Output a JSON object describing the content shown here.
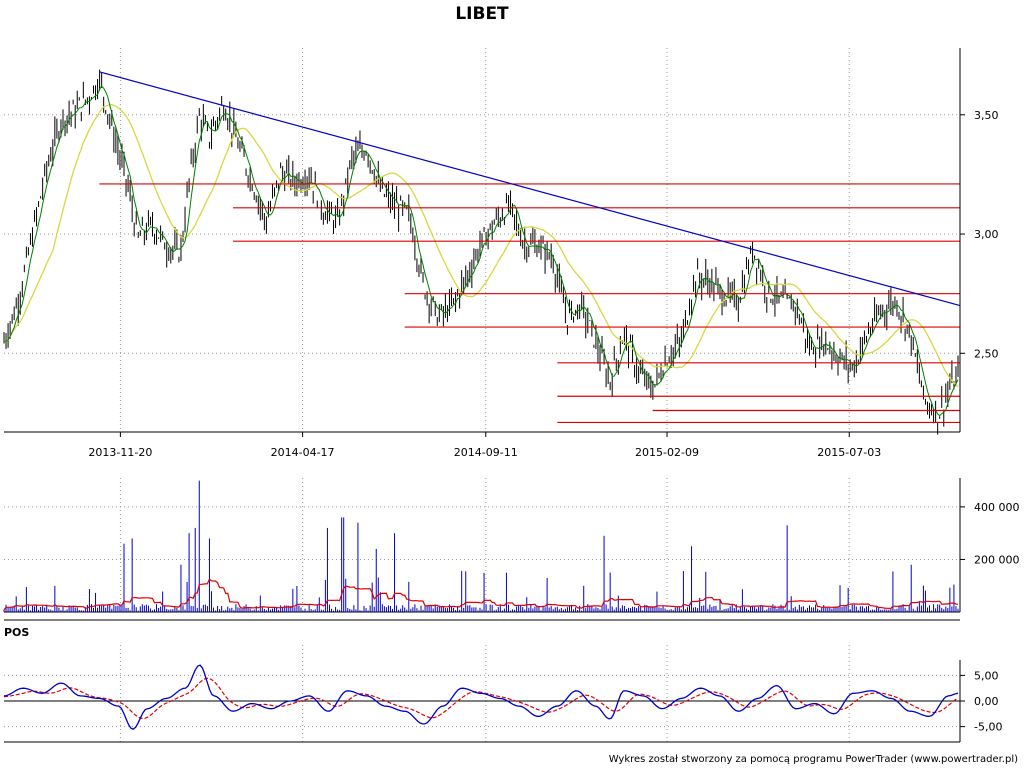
{
  "chart_data": [
    {
      "type": "candlestick",
      "title": "LIBET",
      "x_tick_labels": [
        "2013-11-20",
        "2014-04-17",
        "2014-09-11",
        "2015-02-09",
        "2015-07-03"
      ],
      "y_tick_labels": [
        "3,50",
        "3,00",
        "2,50"
      ],
      "y_ticks": [
        3.5,
        3.0,
        2.5
      ],
      "ylim": [
        2.17,
        3.78
      ],
      "grid": true,
      "colors": {
        "bars": "#000000",
        "sma_short": "#008000",
        "sma_long": "#d8d840",
        "trendline": "#0000cc",
        "levels": "#e00000"
      },
      "trendline": [
        {
          "x": 0.0,
          "y": 3.68
        },
        {
          "x": 1.0,
          "y": 2.7
        }
      ],
      "horizontal_levels": [
        {
          "from": 0.1,
          "y": 3.21
        },
        {
          "from": 0.24,
          "y": 3.11
        },
        {
          "from": 0.24,
          "y": 2.97
        },
        {
          "from": 0.42,
          "y": 2.75
        },
        {
          "from": 0.42,
          "y": 2.61
        },
        {
          "from": 0.58,
          "y": 2.46
        },
        {
          "from": 0.58,
          "y": 2.32
        },
        {
          "from": 0.68,
          "y": 2.26
        },
        {
          "from": 0.58,
          "y": 2.21
        }
      ],
      "price_series": [
        [
          0.0,
          2.55
        ],
        [
          0.015,
          2.72
        ],
        [
          0.03,
          3.0
        ],
        [
          0.045,
          3.28
        ],
        [
          0.06,
          3.48
        ],
        [
          0.075,
          3.52
        ],
        [
          0.09,
          3.58
        ],
        [
          0.1,
          3.65
        ],
        [
          0.115,
          3.42
        ],
        [
          0.13,
          3.2
        ],
        [
          0.14,
          2.98
        ],
        [
          0.155,
          3.04
        ],
        [
          0.17,
          2.95
        ],
        [
          0.185,
          2.92
        ],
        [
          0.195,
          3.25
        ],
        [
          0.205,
          3.5
        ],
        [
          0.215,
          3.4
        ],
        [
          0.23,
          3.55
        ],
        [
          0.245,
          3.38
        ],
        [
          0.26,
          3.22
        ],
        [
          0.275,
          3.05
        ],
        [
          0.29,
          3.26
        ],
        [
          0.305,
          3.22
        ],
        [
          0.32,
          3.25
        ],
        [
          0.335,
          3.1
        ],
        [
          0.35,
          3.05
        ],
        [
          0.365,
          3.32
        ],
        [
          0.38,
          3.36
        ],
        [
          0.395,
          3.18
        ],
        [
          0.41,
          3.12
        ],
        [
          0.425,
          3.08
        ],
        [
          0.44,
          2.78
        ],
        [
          0.455,
          2.65
        ],
        [
          0.47,
          2.7
        ],
        [
          0.485,
          2.82
        ],
        [
          0.5,
          2.96
        ],
        [
          0.515,
          3.05
        ],
        [
          0.53,
          3.12
        ],
        [
          0.545,
          2.96
        ],
        [
          0.56,
          2.95
        ],
        [
          0.575,
          2.9
        ],
        [
          0.59,
          2.65
        ],
        [
          0.605,
          2.7
        ],
        [
          0.62,
          2.55
        ],
        [
          0.635,
          2.38
        ],
        [
          0.65,
          2.58
        ],
        [
          0.665,
          2.42
        ],
        [
          0.68,
          2.35
        ],
        [
          0.695,
          2.48
        ],
        [
          0.71,
          2.55
        ],
        [
          0.725,
          2.82
        ],
        [
          0.74,
          2.8
        ],
        [
          0.755,
          2.74
        ],
        [
          0.77,
          2.72
        ],
        [
          0.785,
          2.94
        ],
        [
          0.8,
          2.76
        ],
        [
          0.815,
          2.72
        ],
        [
          0.83,
          2.7
        ],
        [
          0.845,
          2.52
        ],
        [
          0.86,
          2.55
        ],
        [
          0.875,
          2.48
        ],
        [
          0.89,
          2.44
        ],
        [
          0.905,
          2.58
        ],
        [
          0.92,
          2.68
        ],
        [
          0.935,
          2.72
        ],
        [
          0.95,
          2.58
        ],
        [
          0.965,
          2.3
        ],
        [
          0.98,
          2.24
        ],
        [
          0.99,
          2.35
        ],
        [
          1.0,
          2.4
        ]
      ]
    },
    {
      "type": "bar",
      "y_tick_labels": [
        "400 000",
        "200 000"
      ],
      "y_ticks": [
        400000,
        200000
      ],
      "ylim": [
        0,
        510000
      ],
      "colors": {
        "bars": "#0000cc",
        "average": "#e00000"
      },
      "spikes": [
        [
          0.125,
          260000
        ],
        [
          0.135,
          280000
        ],
        [
          0.185,
          180000
        ],
        [
          0.195,
          300000
        ],
        [
          0.2,
          320000
        ],
        [
          0.205,
          500000
        ],
        [
          0.215,
          280000
        ],
        [
          0.34,
          320000
        ],
        [
          0.355,
          360000
        ],
        [
          0.37,
          340000
        ],
        [
          0.39,
          240000
        ],
        [
          0.41,
          300000
        ],
        [
          0.63,
          290000
        ],
        [
          0.72,
          250000
        ],
        [
          0.82,
          330000
        ],
        [
          0.95,
          180000
        ]
      ]
    },
    {
      "type": "line",
      "panel_label": "POS",
      "y_tick_labels": [
        "5,00",
        "0,00",
        "-5,00"
      ],
      "y_ticks": [
        5,
        0,
        -5
      ],
      "ylim": [
        -8,
        8
      ],
      "colors": {
        "pos": "#0000cc",
        "signal": "#e00000"
      },
      "pos_series": [
        [
          0.0,
          1.0
        ],
        [
          0.02,
          2.5
        ],
        [
          0.04,
          1.5
        ],
        [
          0.06,
          3.5
        ],
        [
          0.08,
          1.0
        ],
        [
          0.1,
          0.5
        ],
        [
          0.12,
          -1.0
        ],
        [
          0.135,
          -5.5
        ],
        [
          0.15,
          -1.5
        ],
        [
          0.17,
          0.5
        ],
        [
          0.19,
          2.5
        ],
        [
          0.205,
          7.0
        ],
        [
          0.22,
          1.0
        ],
        [
          0.24,
          -2.0
        ],
        [
          0.26,
          -0.5
        ],
        [
          0.28,
          -1.5
        ],
        [
          0.3,
          0.0
        ],
        [
          0.32,
          1.0
        ],
        [
          0.34,
          -2.0
        ],
        [
          0.36,
          2.0
        ],
        [
          0.38,
          1.0
        ],
        [
          0.4,
          -1.0
        ],
        [
          0.42,
          -2.0
        ],
        [
          0.44,
          -4.5
        ],
        [
          0.46,
          -1.0
        ],
        [
          0.48,
          2.5
        ],
        [
          0.5,
          1.5
        ],
        [
          0.52,
          0.5
        ],
        [
          0.54,
          -1.0
        ],
        [
          0.56,
          -3.0
        ],
        [
          0.58,
          -1.0
        ],
        [
          0.6,
          2.0
        ],
        [
          0.62,
          -1.0
        ],
        [
          0.635,
          -3.5
        ],
        [
          0.65,
          2.0
        ],
        [
          0.67,
          1.0
        ],
        [
          0.69,
          -1.5
        ],
        [
          0.71,
          0.5
        ],
        [
          0.73,
          2.5
        ],
        [
          0.75,
          1.0
        ],
        [
          0.77,
          -2.0
        ],
        [
          0.79,
          0.5
        ],
        [
          0.81,
          3.0
        ],
        [
          0.83,
          -1.5
        ],
        [
          0.85,
          -0.5
        ],
        [
          0.87,
          -2.5
        ],
        [
          0.89,
          1.5
        ],
        [
          0.91,
          2.0
        ],
        [
          0.93,
          0.5
        ],
        [
          0.95,
          -2.0
        ],
        [
          0.97,
          -3.0
        ],
        [
          0.99,
          1.0
        ],
        [
          1.0,
          1.5
        ]
      ]
    }
  ],
  "credit": "Wykres został stworzony za pomocą programu PowerTrader (www.powertrader.pl)"
}
